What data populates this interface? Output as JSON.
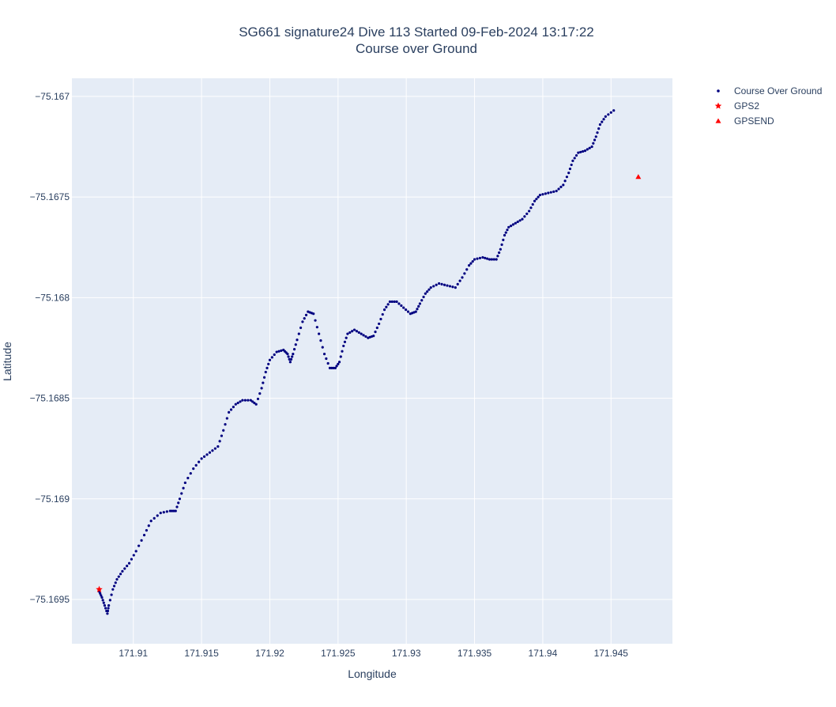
{
  "chart_data": {
    "type": "scatter",
    "title_line1": "SG661 signature24 Dive 113 Started 09-Feb-2024 13:17:22",
    "title_line2": "Course over Ground",
    "xlabel": "Longitude",
    "ylabel": "Latitude",
    "xlim": [
      171.9055,
      171.9495
    ],
    "ylim": [
      -75.16972,
      -75.16691
    ],
    "x_ticks": [
      171.91,
      171.915,
      171.92,
      171.925,
      171.93,
      171.935,
      171.94,
      171.945
    ],
    "x_tick_labels": [
      "171.91",
      "171.915",
      "171.92",
      "171.925",
      "171.93",
      "171.935",
      "171.94",
      "171.945"
    ],
    "y_ticks": [
      -75.167,
      -75.1675,
      -75.168,
      -75.1685,
      -75.169,
      -75.1695
    ],
    "y_tick_labels": [
      "−75.167",
      "−75.1675",
      "−75.168",
      "−75.1685",
      "−75.169",
      "−75.1695"
    ],
    "grid": true,
    "legend_position": "top-right",
    "colors": {
      "plot_bg": "#e5ecf6",
      "grid": "#ffffff",
      "course": "#000080",
      "gps": "#ff0000"
    },
    "series": [
      {
        "name": "Course Over Ground",
        "marker": "dot",
        "color": "#000080",
        "points": [
          [
            171.9075,
            -75.16946
          ],
          [
            171.9077,
            -75.16949
          ],
          [
            171.9079,
            -75.16953
          ],
          [
            171.9081,
            -75.16957
          ],
          [
            171.9082,
            -75.16953
          ],
          [
            171.9085,
            -75.16945
          ],
          [
            171.9088,
            -75.1694
          ],
          [
            171.9092,
            -75.16936
          ],
          [
            171.9097,
            -75.16932
          ],
          [
            171.9102,
            -75.16926
          ],
          [
            171.9108,
            -75.16918
          ],
          [
            171.9113,
            -75.16911
          ],
          [
            171.912,
            -75.16907
          ],
          [
            171.9127,
            -75.16906
          ],
          [
            171.9131,
            -75.16906
          ],
          [
            171.9134,
            -75.169
          ],
          [
            171.9138,
            -75.16892
          ],
          [
            171.9144,
            -75.16885
          ],
          [
            171.915,
            -75.1688
          ],
          [
            171.9156,
            -75.16877
          ],
          [
            171.9162,
            -75.16874
          ],
          [
            171.9166,
            -75.16866
          ],
          [
            171.917,
            -75.16857
          ],
          [
            171.9175,
            -75.16853
          ],
          [
            171.918,
            -75.16851
          ],
          [
            171.9186,
            -75.16851
          ],
          [
            171.919,
            -75.16853
          ],
          [
            171.9194,
            -75.16845
          ],
          [
            171.9197,
            -75.16837
          ],
          [
            171.92,
            -75.16831
          ],
          [
            171.9205,
            -75.16827
          ],
          [
            171.921,
            -75.16826
          ],
          [
            171.9213,
            -75.16828
          ],
          [
            171.9215,
            -75.16832
          ],
          [
            171.9217,
            -75.16828
          ],
          [
            171.922,
            -75.16821
          ],
          [
            171.9224,
            -75.16812
          ],
          [
            171.9228,
            -75.16807
          ],
          [
            171.9232,
            -75.16808
          ],
          [
            171.9236,
            -75.16818
          ],
          [
            171.924,
            -75.16828
          ],
          [
            171.9244,
            -75.16835
          ],
          [
            171.9248,
            -75.16835
          ],
          [
            171.9251,
            -75.16832
          ],
          [
            171.9254,
            -75.16824
          ],
          [
            171.9257,
            -75.16818
          ],
          [
            171.9262,
            -75.16816
          ],
          [
            171.9267,
            -75.16818
          ],
          [
            171.9272,
            -75.1682
          ],
          [
            171.9276,
            -75.16819
          ],
          [
            171.928,
            -75.16813
          ],
          [
            171.9284,
            -75.16806
          ],
          [
            171.9288,
            -75.16802
          ],
          [
            171.9293,
            -75.16802
          ],
          [
            171.9298,
            -75.16805
          ],
          [
            171.9303,
            -75.16808
          ],
          [
            171.9307,
            -75.16807
          ],
          [
            171.931,
            -75.16803
          ],
          [
            171.9314,
            -75.16798
          ],
          [
            171.9318,
            -75.16795
          ],
          [
            171.9324,
            -75.16793
          ],
          [
            171.933,
            -75.16794
          ],
          [
            171.9336,
            -75.16795
          ],
          [
            171.9341,
            -75.1679
          ],
          [
            171.9346,
            -75.16784
          ],
          [
            171.935,
            -75.16781
          ],
          [
            171.9356,
            -75.1678
          ],
          [
            171.9361,
            -75.16781
          ],
          [
            171.9366,
            -75.16781
          ],
          [
            171.9369,
            -75.16776
          ],
          [
            171.9372,
            -75.16769
          ],
          [
            171.9375,
            -75.16765
          ],
          [
            171.938,
            -75.16763
          ],
          [
            171.9385,
            -75.16761
          ],
          [
            171.939,
            -75.16757
          ],
          [
            171.9394,
            -75.16752
          ],
          [
            171.9398,
            -75.16749
          ],
          [
            171.9404,
            -75.16748
          ],
          [
            171.941,
            -75.16747
          ],
          [
            171.9415,
            -75.16744
          ],
          [
            171.9419,
            -75.16738
          ],
          [
            171.9422,
            -75.16732
          ],
          [
            171.9426,
            -75.16728
          ],
          [
            171.9431,
            -75.16727
          ],
          [
            171.9436,
            -75.16725
          ],
          [
            171.9439,
            -75.1672
          ],
          [
            171.9442,
            -75.16714
          ],
          [
            171.9446,
            -75.1671
          ],
          [
            171.9452,
            -75.16707
          ]
        ]
      },
      {
        "name": "GPS2",
        "marker": "star",
        "color": "#ff0000",
        "points": [
          [
            171.9075,
            -75.16945
          ]
        ]
      },
      {
        "name": "GPSEND",
        "marker": "triangle-up",
        "color": "#ff0000",
        "points": [
          [
            171.947,
            -75.1674
          ]
        ]
      }
    ]
  }
}
